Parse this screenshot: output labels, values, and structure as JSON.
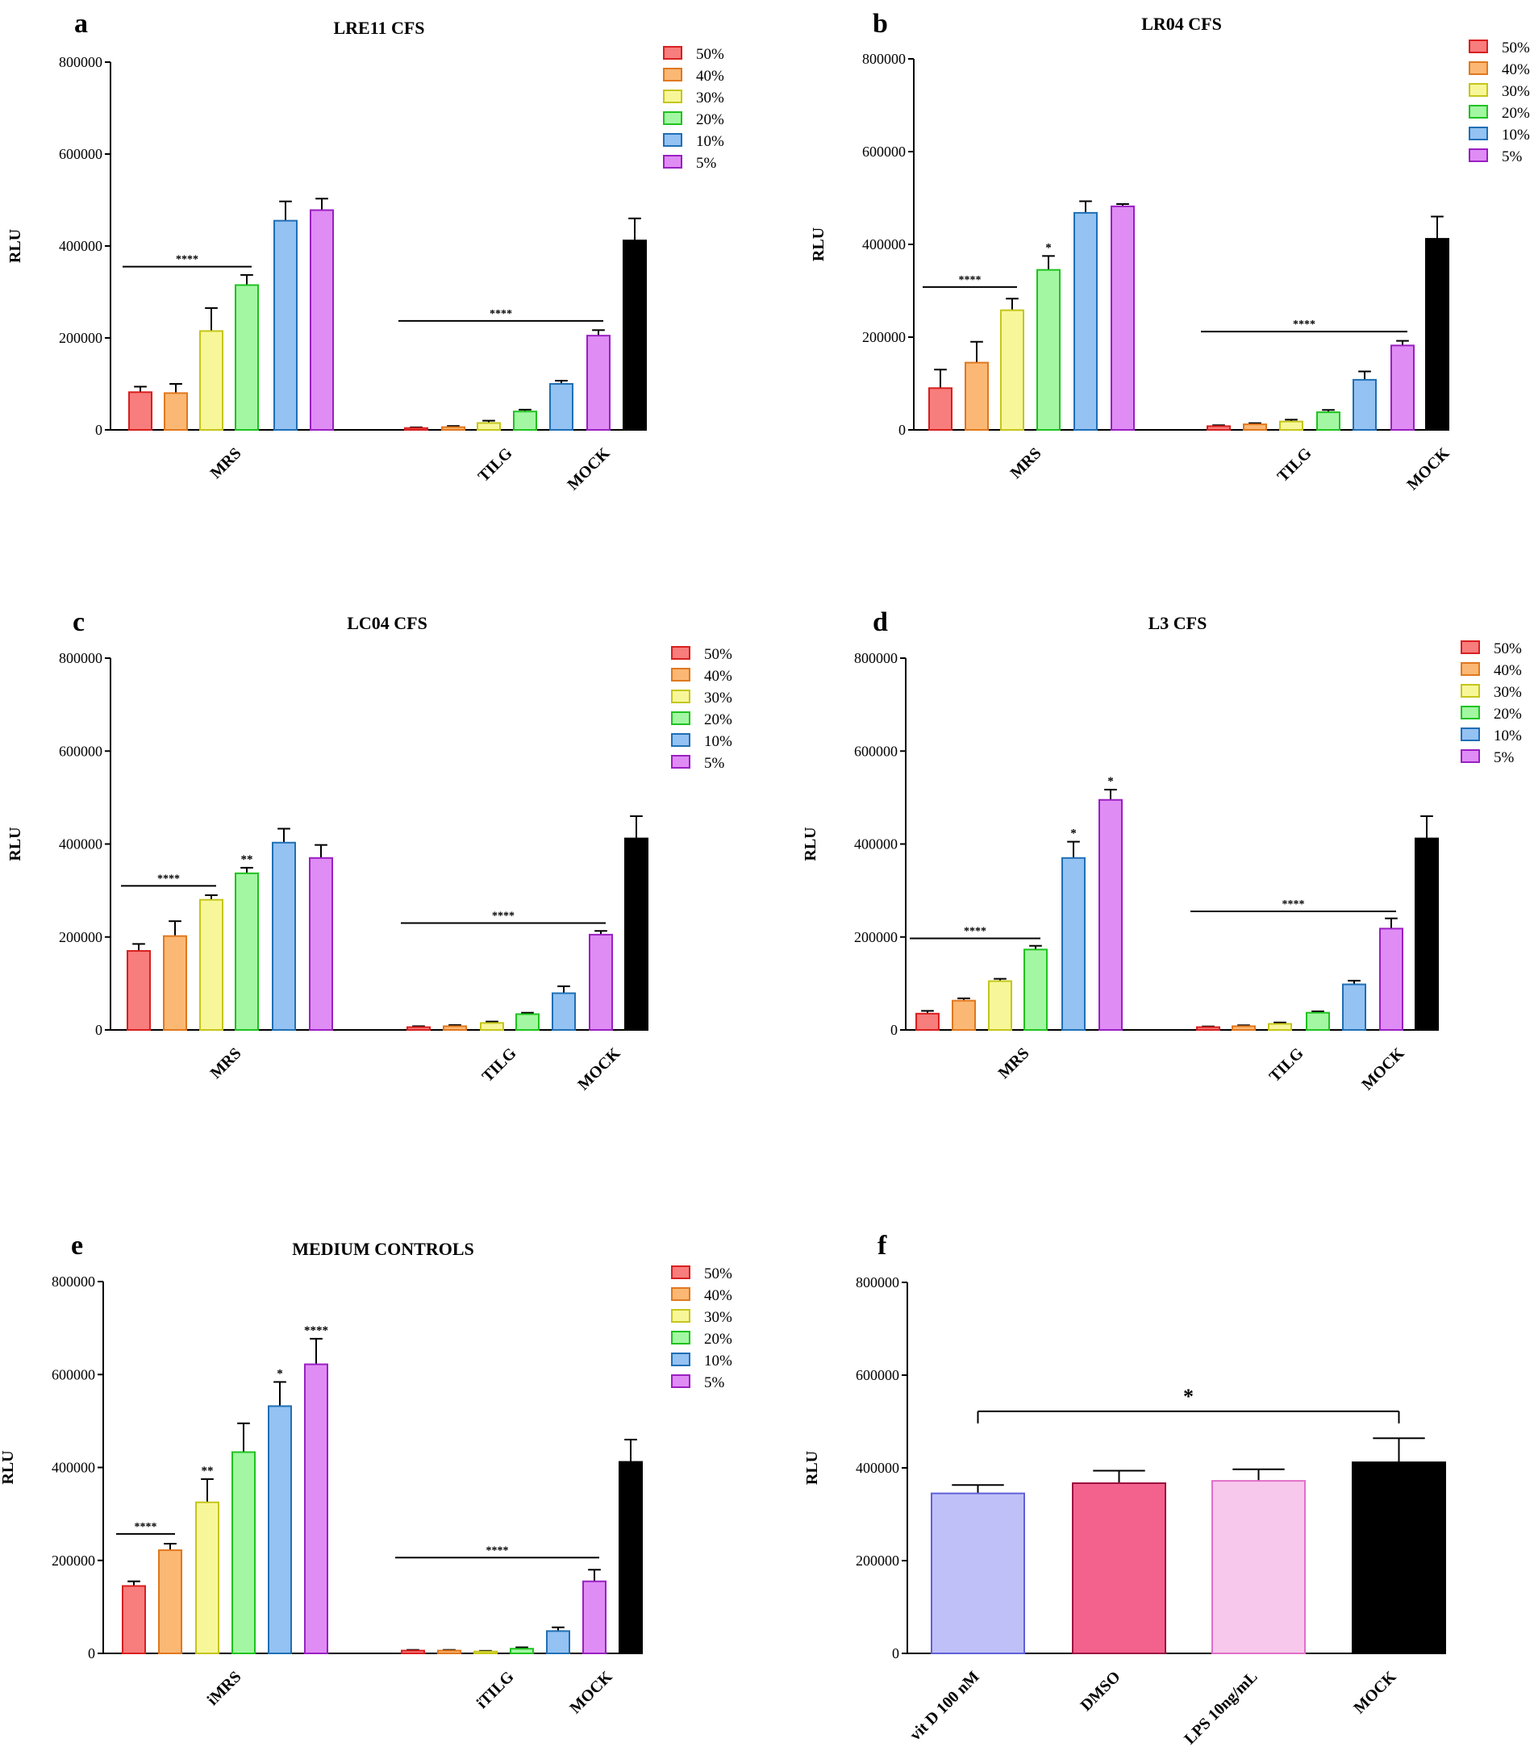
{
  "figure": {
    "legend_labels": [
      "50%",
      "40%",
      "30%",
      "20%",
      "10%",
      "5%"
    ]
  },
  "chart_data": [
    {
      "panel": "a",
      "type": "bar",
      "title": "LRE11 CFS",
      "ylabel": "RLU",
      "ylim": [
        0,
        800000
      ],
      "yticks": [
        "0",
        "200000",
        "400000",
        "600000",
        "800000"
      ],
      "groups": [
        {
          "label": "MRS",
          "values": [
            82000,
            80000,
            215000,
            315000,
            455000,
            478000
          ],
          "errors": [
            12000,
            20000,
            50000,
            22000,
            42000,
            25000
          ]
        },
        {
          "label": "TILG",
          "values": [
            4000,
            6000,
            15000,
            40000,
            100000,
            205000
          ],
          "errors": [
            1500,
            2500,
            5000,
            4000,
            7000,
            12000
          ]
        },
        {
          "label": "MOCK",
          "values": [
            412000
          ],
          "errors": [
            48000
          ]
        }
      ],
      "significance": [
        {
          "from": "MRS 50%",
          "to": "MRS 20%",
          "y": 355000,
          "text": "****"
        },
        {
          "from": "TILG 50%",
          "to": "TILG 5%",
          "y": 237000,
          "text": "****"
        }
      ],
      "bar_marks": []
    },
    {
      "panel": "b",
      "type": "bar",
      "title": "LR04 CFS",
      "ylabel": "RLU",
      "ylim": [
        0,
        800000
      ],
      "yticks": [
        "0",
        "200000",
        "400000",
        "600000",
        "800000"
      ],
      "groups": [
        {
          "label": "MRS",
          "values": [
            90000,
            145000,
            258000,
            345000,
            468000,
            482000
          ],
          "errors": [
            40000,
            45000,
            25000,
            30000,
            25000,
            5000
          ]
        },
        {
          "label": "TILG",
          "values": [
            8000,
            12000,
            18000,
            38000,
            108000,
            182000
          ],
          "errors": [
            2000,
            2500,
            4000,
            5000,
            18000,
            10000
          ]
        },
        {
          "label": "MOCK",
          "values": [
            412000
          ],
          "errors": [
            48000
          ]
        }
      ],
      "significance": [
        {
          "from": "MRS 50%",
          "to": "MRS 30%",
          "y": 308000,
          "text": "****"
        },
        {
          "from": "TILG 50%",
          "to": "TILG 5%",
          "y": 212000,
          "text": "****"
        }
      ],
      "bar_marks": [
        {
          "bar": "MRS 20%",
          "text": "*"
        }
      ]
    },
    {
      "panel": "c",
      "type": "bar",
      "title": "LC04 CFS",
      "ylabel": "RLU",
      "ylim": [
        0,
        800000
      ],
      "yticks": [
        "0",
        "200000",
        "400000",
        "600000",
        "800000"
      ],
      "groups": [
        {
          "label": "MRS",
          "values": [
            170000,
            202000,
            280000,
            337000,
            403000,
            370000
          ],
          "errors": [
            15000,
            32000,
            10000,
            12000,
            30000,
            28000
          ]
        },
        {
          "label": "TILG",
          "values": [
            6000,
            8000,
            15000,
            34000,
            79000,
            205000
          ],
          "errors": [
            2000,
            2500,
            3000,
            3000,
            15000,
            8000
          ]
        },
        {
          "label": "MOCK",
          "values": [
            412000
          ],
          "errors": [
            48000
          ]
        }
      ],
      "significance": [
        {
          "from": "MRS 50%",
          "to": "MRS 30%",
          "y": 310000,
          "text": "****"
        },
        {
          "from": "TILG 50%",
          "to": "TILG 5%",
          "y": 230000,
          "text": "****"
        }
      ],
      "bar_marks": [
        {
          "bar": "MRS 20%",
          "text": "**"
        }
      ]
    },
    {
      "panel": "d",
      "type": "bar",
      "title": "L3 CFS",
      "ylabel": "RLU",
      "ylim": [
        0,
        800000
      ],
      "yticks": [
        "0",
        "200000",
        "400000",
        "600000",
        "800000"
      ],
      "groups": [
        {
          "label": "MRS",
          "values": [
            35000,
            63000,
            105000,
            173000,
            370000,
            495000
          ],
          "errors": [
            6000,
            5000,
            5000,
            8000,
            35000,
            22000
          ]
        },
        {
          "label": "TILG",
          "values": [
            6000,
            8000,
            13000,
            37000,
            98000,
            218000
          ],
          "errors": [
            1500,
            2000,
            3000,
            3000,
            8000,
            22000
          ]
        },
        {
          "label": "MOCK",
          "values": [
            412000
          ],
          "errors": [
            48000
          ]
        }
      ],
      "significance": [
        {
          "from": "MRS 50%",
          "to": "MRS 20%",
          "y": 197000,
          "text": "****"
        },
        {
          "from": "TILG 50%",
          "to": "TILG 5%",
          "y": 255000,
          "text": "****"
        }
      ],
      "bar_marks": [
        {
          "bar": "MRS 10%",
          "text": "*"
        },
        {
          "bar": "MRS 5%",
          "text": "*"
        }
      ]
    },
    {
      "panel": "e",
      "type": "bar",
      "title": "MEDIUM CONTROLS",
      "ylabel": "RLU",
      "ylim": [
        0,
        800000
      ],
      "yticks": [
        "0",
        "200000",
        "400000",
        "600000",
        "800000"
      ],
      "groups": [
        {
          "label": "iMRS",
          "values": [
            145000,
            222000,
            325000,
            433000,
            532000,
            622000
          ],
          "errors": [
            10000,
            14000,
            50000,
            62000,
            52000,
            55000
          ]
        },
        {
          "label": "iTILG",
          "values": [
            6000,
            6000,
            4000,
            10000,
            48000,
            155000
          ],
          "errors": [
            1500,
            1500,
            1500,
            3000,
            8000,
            25000
          ]
        },
        {
          "label": "MOCK",
          "values": [
            412000
          ],
          "errors": [
            48000
          ]
        }
      ],
      "significance": [
        {
          "from": "iMRS 50%",
          "to": "iMRS 40%",
          "y": 257000,
          "text": "****"
        },
        {
          "from": "iTILG 50%",
          "to": "iTILG 5%",
          "y": 206000,
          "text": "****"
        }
      ],
      "bar_marks": [
        {
          "bar": "iMRS 30%",
          "text": "**"
        },
        {
          "bar": "iMRS 10%",
          "text": "*"
        },
        {
          "bar": "iMRS 5%",
          "text": "****"
        }
      ]
    },
    {
      "panel": "f",
      "type": "bar",
      "title": "",
      "ylabel": "RLU",
      "ylim": [
        0,
        800000
      ],
      "yticks": [
        "0",
        "200000",
        "400000",
        "600000",
        "800000"
      ],
      "categories": [
        "vit D 100 nM",
        "DMSO",
        "LPS 10ng/mL",
        "MOCK"
      ],
      "values": [
        345000,
        367000,
        372000,
        412000
      ],
      "errors": [
        18000,
        27000,
        25000,
        52000
      ],
      "colors": [
        "#c0c0f8",
        "#f2628c",
        "#f8c8ec",
        "#000000"
      ],
      "edge_colors": [
        "#6060d8",
        "#9a1040",
        "#e070c8",
        "#000000"
      ],
      "significance": [
        {
          "from": "vit D 100 nM",
          "to": "MOCK",
          "y": 522000,
          "text": "*"
        }
      ]
    }
  ],
  "style": {
    "series_fill": [
      "#f87d7d",
      "#fbb874",
      "#f7f79a",
      "#a3f7a3",
      "#94c2f2",
      "#e08cf5"
    ],
    "series_edge": [
      "#d81f1f",
      "#e0781e",
      "#c5c51a",
      "#1fc21f",
      "#1f6fb5",
      "#9a1fc2"
    ],
    "mock_color": "#000000"
  }
}
